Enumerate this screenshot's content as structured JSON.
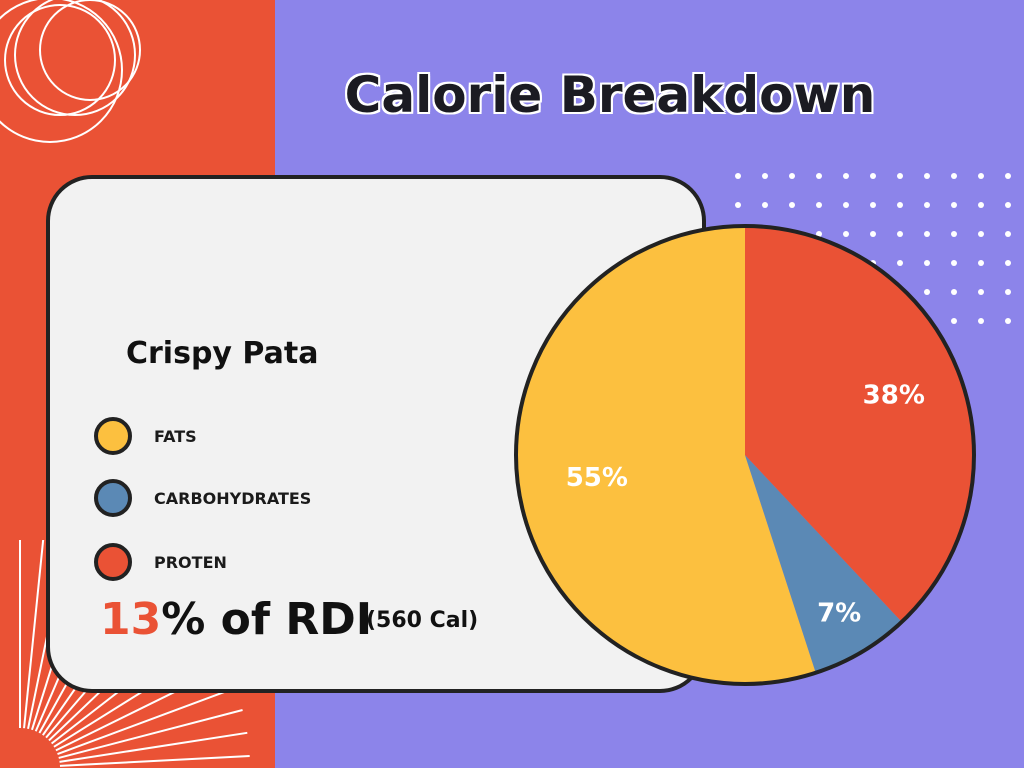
{
  "title": "Calorie Breakdown",
  "dish": "Crispy Pata",
  "colors": {
    "background": "#8c84ea",
    "left_band": "#ea5235",
    "fats": "#fcc03f",
    "carbohydrates": "#5b89b5",
    "protein": "#ea5235",
    "card": "#f2f2f2",
    "outline": "#222222"
  },
  "legend": [
    {
      "label": "FATS",
      "color": "#fcc03f"
    },
    {
      "label": "CARBOHYDRATES",
      "color": "#5b89b5"
    },
    {
      "label": "PROTEN",
      "color": "#ea5235"
    }
  ],
  "rdi": {
    "number": "13",
    "suffix": "% of RDI",
    "calories": "(560 Cal)"
  },
  "chart_data": {
    "type": "pie",
    "title": "Calorie Breakdown",
    "categories": [
      "FATS",
      "CARBOHYDRATES",
      "PROTEN"
    ],
    "values": [
      55,
      7,
      38
    ],
    "labels": [
      "55%",
      "7%",
      "38%"
    ],
    "colors": [
      "#fcc03f",
      "#5b89b5",
      "#ea5235"
    ],
    "start": "12 o'clock",
    "direction": "counterclockwise",
    "legend_position": "left"
  }
}
